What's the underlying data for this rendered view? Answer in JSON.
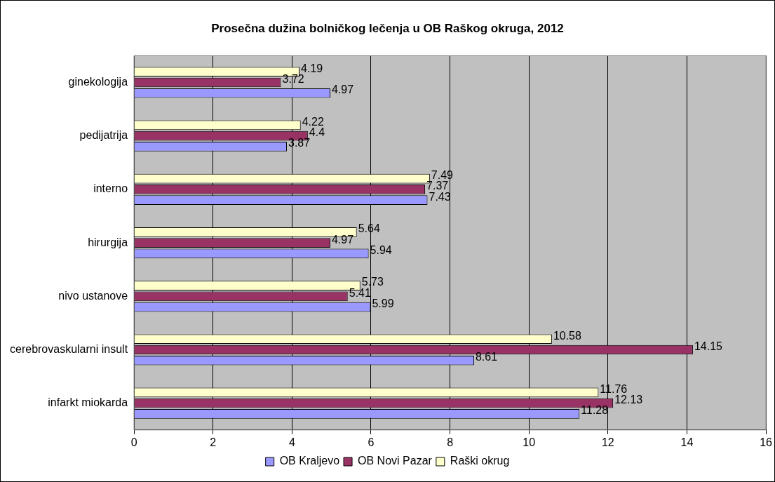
{
  "chart_data": {
    "type": "bar",
    "orientation": "horizontal",
    "title": "Prosečna dužina bolničkog lečenja u OB Raškog okruga, 2012",
    "categories": [
      "ginekologija",
      "pedijatrija",
      "interno",
      "hirurgija",
      "nivo ustanove",
      "cerebrovaskularni insult",
      "infarkt miokarda"
    ],
    "series": [
      {
        "name": "OB Kraljevo",
        "color": "#9999ff",
        "values": [
          4.97,
          3.87,
          7.43,
          5.94,
          5.99,
          8.61,
          11.28
        ]
      },
      {
        "name": "OB Novi Pazar",
        "color": "#993366",
        "values": [
          3.72,
          4.4,
          7.37,
          4.97,
          5.41,
          14.15,
          12.13
        ]
      },
      {
        "name": "Raški okrug",
        "color": "#ffffcc",
        "values": [
          4.19,
          4.22,
          7.49,
          5.64,
          5.73,
          10.58,
          11.76
        ]
      }
    ],
    "xlim": [
      0,
      16
    ],
    "xticks": [
      0,
      2,
      4,
      6,
      8,
      10,
      12,
      14,
      16
    ],
    "grid": "x",
    "legend": "bottom",
    "data_labels": true
  }
}
